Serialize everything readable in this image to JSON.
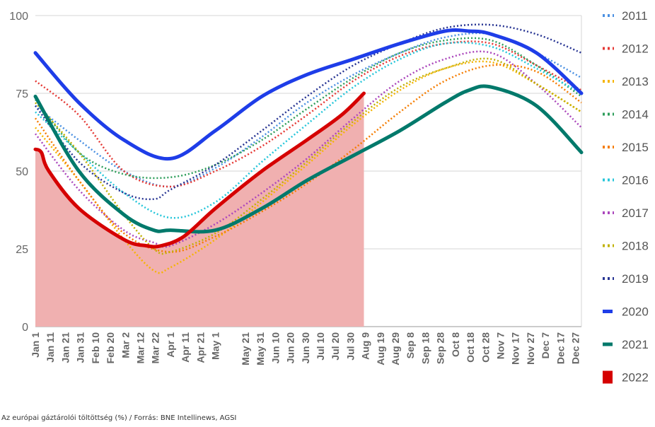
{
  "caption": "Az európai gáztárolói töltöttség (%) / Forrás: BNE Intellinews, AGSI",
  "chart_data": {
    "type": "line",
    "title": "",
    "xlabel": "",
    "ylabel": "",
    "ylim": [
      0,
      100
    ],
    "xlim": [
      1,
      365
    ],
    "y_ticks": [
      0,
      25,
      50,
      75,
      100
    ],
    "grid": "horizontal",
    "legend_position": "right",
    "x_ticks": [
      {
        "label": "Jan 1",
        "day": 1
      },
      {
        "label": "Jan 11",
        "day": 11
      },
      {
        "label": "Jan 21",
        "day": 21
      },
      {
        "label": "Jan 31",
        "day": 31
      },
      {
        "label": "Feb 10",
        "day": 41
      },
      {
        "label": "Feb 20",
        "day": 51
      },
      {
        "label": "Mar 2",
        "day": 61
      },
      {
        "label": "Mar 12",
        "day": 71
      },
      {
        "label": "Mar 22",
        "day": 81
      },
      {
        "label": "Apr 1",
        "day": 91
      },
      {
        "label": "Apr 11",
        "day": 101
      },
      {
        "label": "Apr 21",
        "day": 111
      },
      {
        "label": "May 1",
        "day": 121
      },
      {
        "label": "May 21",
        "day": 141
      },
      {
        "label": "May 31",
        "day": 151
      },
      {
        "label": "Jun 10",
        "day": 161
      },
      {
        "label": "Jun 20",
        "day": 171
      },
      {
        "label": "Jun 30",
        "day": 181
      },
      {
        "label": "Jul 10",
        "day": 191
      },
      {
        "label": "Jul 20",
        "day": 201
      },
      {
        "label": "Jul 30",
        "day": 211
      },
      {
        "label": "Aug 9",
        "day": 221
      },
      {
        "label": "Aug 19",
        "day": 231
      },
      {
        "label": "Aug 29",
        "day": 241
      },
      {
        "label": "Sep 8",
        "day": 251
      },
      {
        "label": "Sep 18",
        "day": 261
      },
      {
        "label": "Sep 28",
        "day": 271
      },
      {
        "label": "Oct 8",
        "day": 281
      },
      {
        "label": "Oct 18",
        "day": 291
      },
      {
        "label": "Oct 28",
        "day": 301
      },
      {
        "label": "Nov 7",
        "day": 311
      },
      {
        "label": "Nov 17",
        "day": 321
      },
      {
        "label": "Nov 27",
        "day": 331
      },
      {
        "label": "Dec 7",
        "day": 341
      },
      {
        "label": "Dec 17",
        "day": 351
      },
      {
        "label": "Dec 27",
        "day": 361
      }
    ],
    "series": [
      {
        "name": "2011",
        "color": "#4a90e2",
        "style": "dotted",
        "x": [
          1,
          30,
          60,
          91,
          121,
          152,
          182,
          213,
          244,
          274,
          305,
          335,
          365
        ],
        "y": [
          71,
          60,
          50,
          45,
          51,
          61,
          72,
          81,
          88,
          93,
          94,
          88,
          80
        ]
      },
      {
        "name": "2012",
        "color": "#e53935",
        "style": "dotted",
        "x": [
          1,
          30,
          60,
          91,
          121,
          152,
          182,
          213,
          244,
          274,
          305,
          335,
          365
        ],
        "y": [
          79,
          68,
          50,
          45,
          50,
          58,
          68,
          79,
          87,
          91,
          91,
          84,
          76
        ]
      },
      {
        "name": "2013",
        "color": "#f5b400",
        "style": "dotted",
        "x": [
          1,
          30,
          60,
          80,
          91,
          121,
          152,
          182,
          213,
          244,
          274,
          305,
          335,
          365
        ],
        "y": [
          64,
          47,
          28,
          18,
          19,
          28,
          40,
          52,
          65,
          76,
          83,
          85,
          78,
          69
        ]
      },
      {
        "name": "2014",
        "color": "#2e9e5b",
        "style": "dotted",
        "x": [
          1,
          30,
          60,
          91,
          121,
          152,
          182,
          213,
          244,
          274,
          305,
          335,
          365
        ],
        "y": [
          73,
          56,
          49,
          48,
          52,
          60,
          70,
          80,
          88,
          92,
          92,
          84,
          74
        ]
      },
      {
        "name": "2015",
        "color": "#f57c00",
        "style": "dotted",
        "x": [
          1,
          30,
          60,
          91,
          121,
          152,
          182,
          213,
          244,
          274,
          305,
          335,
          365
        ],
        "y": [
          67,
          47,
          30,
          24,
          29,
          37,
          46,
          57,
          69,
          79,
          84,
          82,
          72
        ]
      },
      {
        "name": "2016",
        "color": "#26c6da",
        "style": "dotted",
        "x": [
          1,
          30,
          60,
          91,
          121,
          152,
          182,
          213,
          244,
          274,
          305,
          335,
          365
        ],
        "y": [
          69,
          56,
          43,
          35,
          40,
          53,
          65,
          77,
          86,
          91,
          90,
          83,
          75
        ]
      },
      {
        "name": "2017",
        "color": "#ab47bc",
        "style": "dotted",
        "x": [
          1,
          30,
          60,
          80,
          91,
          121,
          152,
          182,
          213,
          244,
          274,
          305,
          335,
          365
        ],
        "y": [
          62,
          44,
          31,
          27,
          26,
          33,
          43,
          54,
          67,
          79,
          86,
          88,
          78,
          64
        ]
      },
      {
        "name": "2018",
        "color": "#c0b000",
        "style": "dotted",
        "x": [
          1,
          30,
          60,
          80,
          91,
          121,
          152,
          182,
          213,
          244,
          274,
          305,
          335,
          365
        ],
        "y": [
          72,
          56,
          36,
          25,
          24,
          30,
          41,
          53,
          66,
          77,
          83,
          86,
          78,
          69
        ]
      },
      {
        "name": "2019",
        "color": "#283593",
        "style": "dotted",
        "x": [
          1,
          30,
          60,
          80,
          91,
          121,
          152,
          182,
          213,
          244,
          274,
          305,
          335,
          365
        ],
        "y": [
          71,
          53,
          43,
          41,
          44,
          52,
          63,
          74,
          84,
          91,
          96,
          97,
          94,
          88
        ]
      },
      {
        "name": "2020",
        "color": "#1e3de8",
        "style": "solid",
        "x": [
          1,
          30,
          60,
          91,
          121,
          152,
          182,
          213,
          244,
          274,
          290,
          305,
          335,
          365
        ],
        "y": [
          88,
          72,
          60,
          54,
          63,
          74,
          81,
          86,
          91,
          95,
          95,
          94,
          88,
          75
        ]
      },
      {
        "name": "2021",
        "color": "#00796b",
        "style": "solid",
        "x": [
          1,
          30,
          60,
          80,
          91,
          121,
          152,
          182,
          213,
          244,
          274,
          290,
          305,
          335,
          365
        ],
        "y": [
          74,
          50,
          36,
          31,
          31,
          31,
          38,
          47,
          55,
          63,
          72,
          76,
          77,
          71,
          56
        ]
      },
      {
        "name": "2022",
        "color": "#d50000",
        "style": "solid",
        "fill": "#f0b0b0",
        "x": [
          1,
          5,
          10,
          30,
          60,
          75,
          85,
          100,
          121,
          152,
          182,
          205,
          220
        ],
        "y": [
          57,
          56,
          50,
          38,
          28,
          26,
          26,
          29,
          38,
          50,
          60,
          68,
          75
        ]
      }
    ]
  }
}
